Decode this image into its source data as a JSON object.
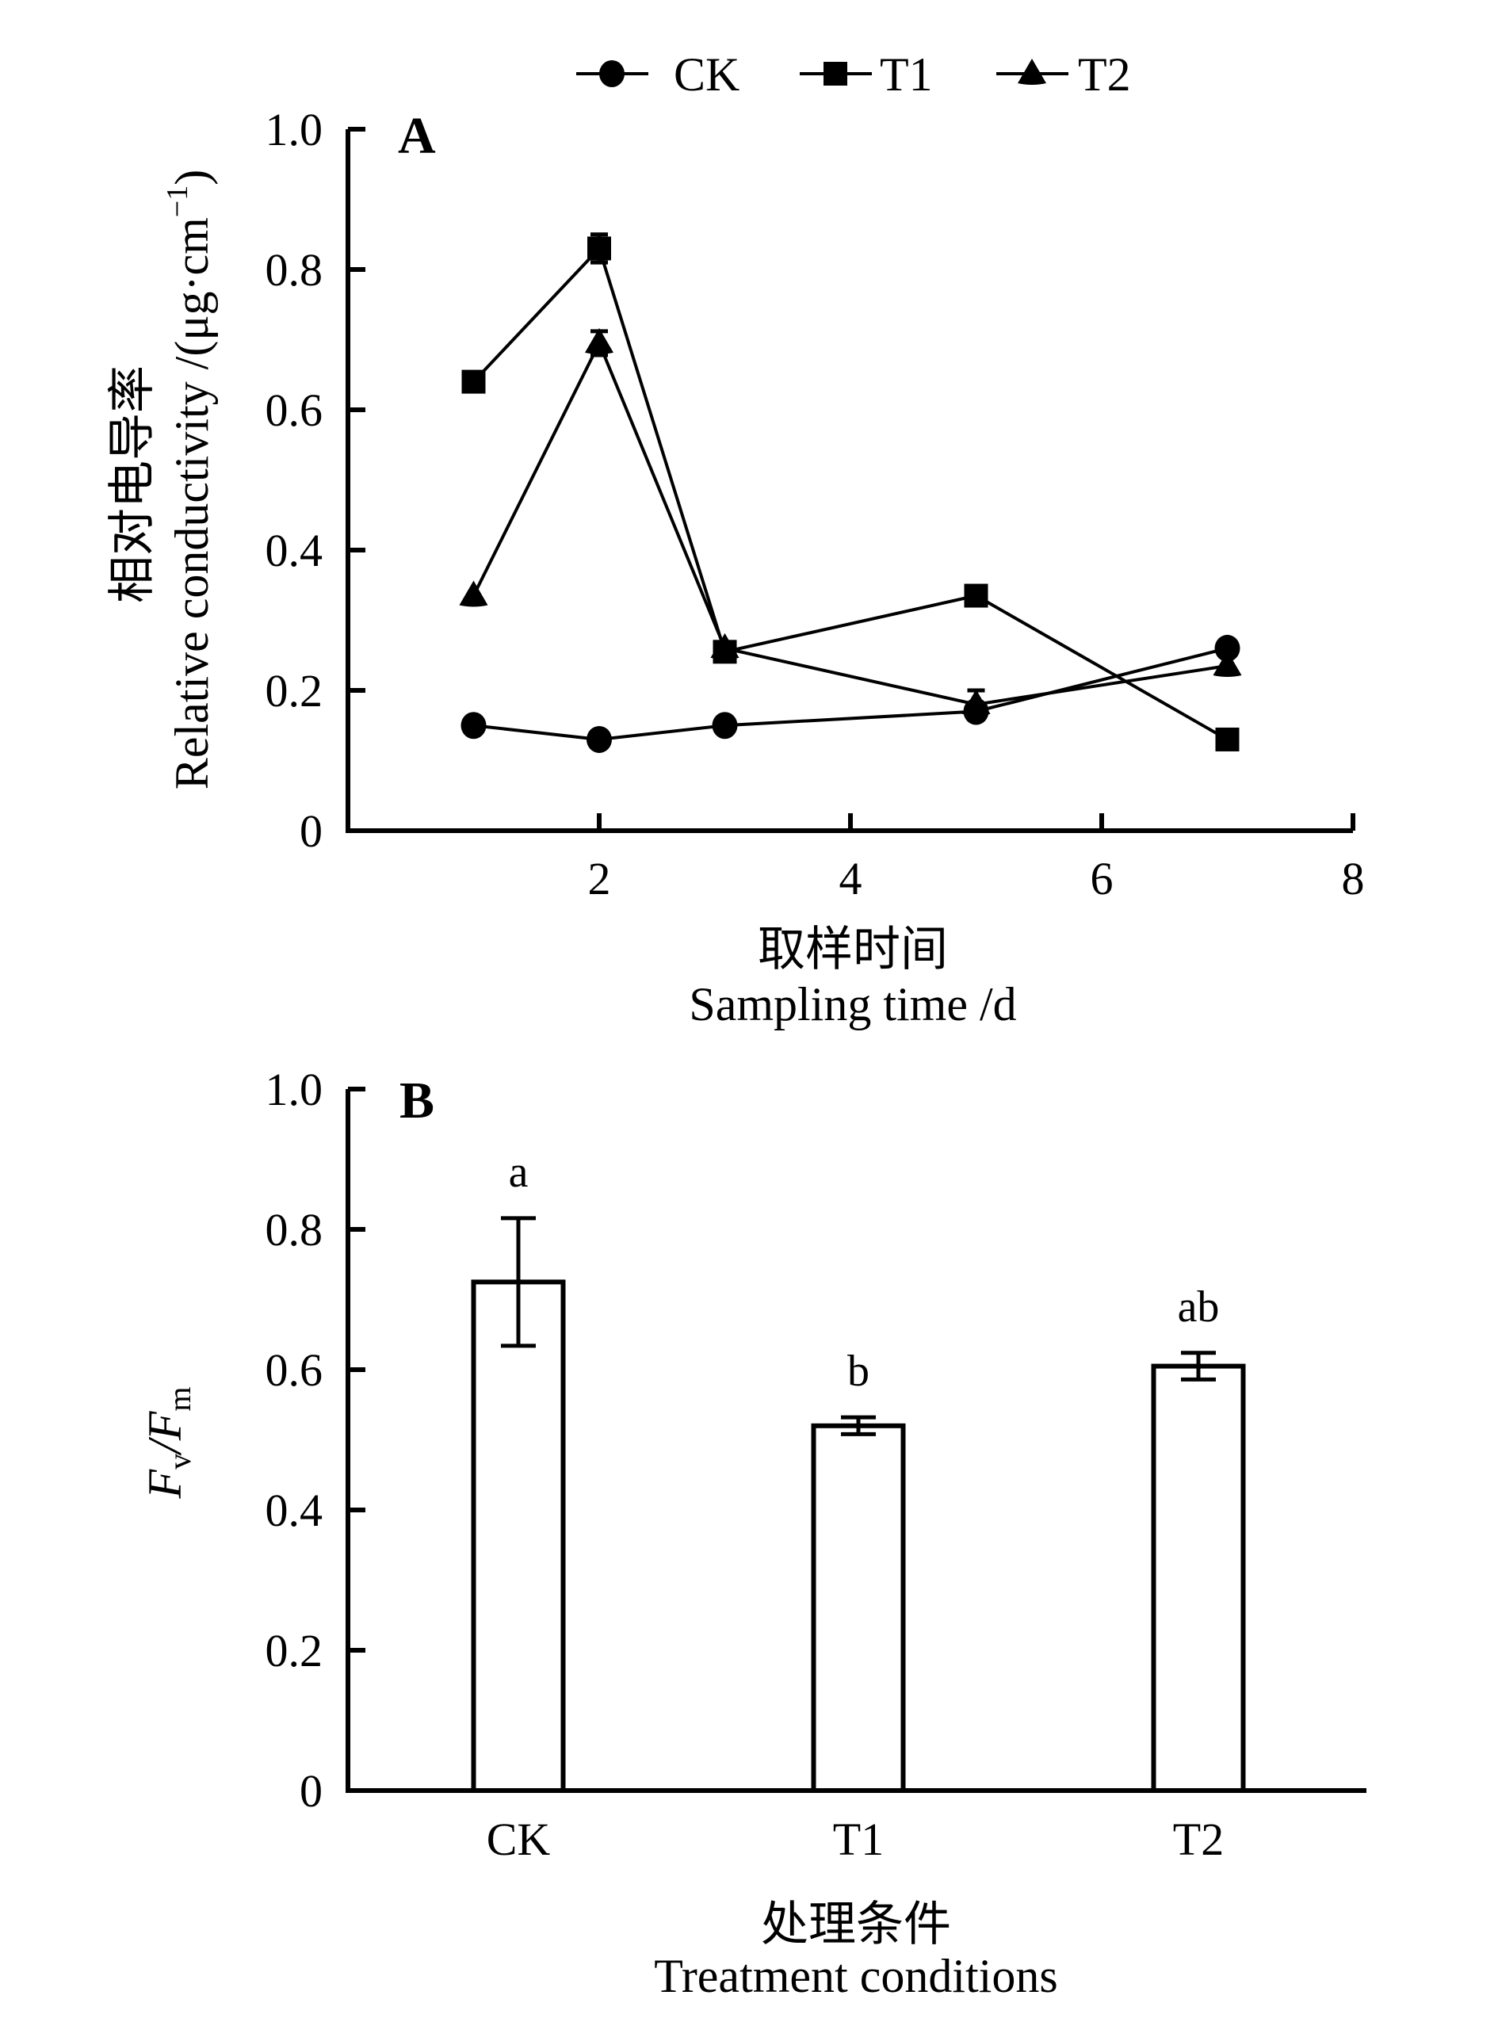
{
  "chart_data": [
    {
      "panel": "A",
      "type": "line",
      "xlabel_cn": "取样时间",
      "xlabel": "Sampling time /d",
      "ylabel_cn": "相对电导率",
      "ylabel": "Relative conductivity /(μg·cm",
      "ylabel_sup": "−1",
      "ylabel_close": ")",
      "xlim": [
        0,
        8
      ],
      "ylim": [
        0,
        1.0
      ],
      "xticks": [
        2,
        4,
        6,
        8
      ],
      "xtick_labels": [
        "2",
        "4",
        "6",
        "8"
      ],
      "yticks": [
        0,
        0.2,
        0.4,
        0.6,
        0.8,
        1.0
      ],
      "ytick_labels": [
        "0",
        "0.2",
        "0.4",
        "0.6",
        "0.8",
        "1.0"
      ],
      "legend_position": "top",
      "grid": false,
      "series": [
        {
          "name": "CK",
          "marker": "circle",
          "x": [
            1,
            2,
            3,
            5,
            7
          ],
          "y": [
            0.15,
            0.13,
            0.15,
            0.17,
            0.26
          ],
          "err": [
            0,
            0,
            0,
            0,
            0
          ]
        },
        {
          "name": "T1",
          "marker": "square",
          "x": [
            1,
            2,
            3,
            5,
            7
          ],
          "y": [
            0.64,
            0.83,
            0.255,
            0.335,
            0.13
          ],
          "err": [
            0,
            0.02,
            0,
            0,
            0
          ]
        },
        {
          "name": "T2",
          "marker": "triangle",
          "x": [
            1,
            2,
            3,
            5,
            7
          ],
          "y": [
            0.335,
            0.695,
            0.26,
            0.18,
            0.235
          ],
          "err": [
            0,
            0.017,
            0,
            0.02,
            0
          ]
        }
      ]
    },
    {
      "panel": "B",
      "type": "bar",
      "categories": [
        "CK",
        "T1",
        "T2"
      ],
      "values": [
        0.725,
        0.52,
        0.605
      ],
      "errors": [
        0.091,
        0.012,
        0.019
      ],
      "significance": [
        "a",
        "b",
        "ab"
      ],
      "xlabel_cn": "处理条件",
      "xlabel": "Treatment conditions",
      "ylabel_main": "F",
      "ylabel_sub1": "v",
      "ylabel_slash": "/F",
      "ylabel_sub2": "m",
      "ylim": [
        0,
        1.0
      ],
      "yticks": [
        0,
        0.2,
        0.4,
        0.6,
        0.8,
        1.0
      ],
      "ytick_labels": [
        "0",
        "0.2",
        "0.4",
        "0.6",
        "0.8",
        "1.0"
      ],
      "grid": false
    }
  ],
  "colors": {
    "ink": "#000000",
    "background": "#ffffff"
  }
}
